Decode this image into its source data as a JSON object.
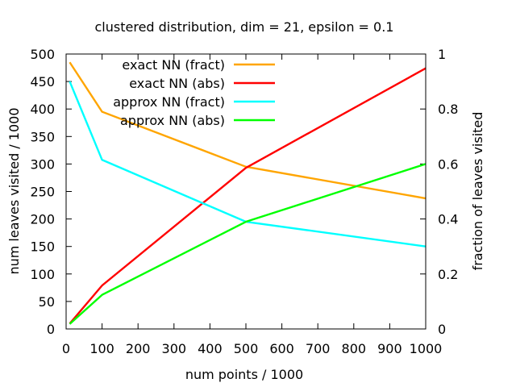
{
  "chart_data": {
    "type": "line",
    "title": "clustered distribution, dim = 21, epsilon = 0.1",
    "xlabel": "num points / 1000",
    "ylabel": "num leaves visited / 1000",
    "y2label": "fraction of leaves visited",
    "xlim": [
      0,
      1000
    ],
    "ylim": [
      0,
      500
    ],
    "y2lim": [
      0,
      1
    ],
    "xticks": [
      0,
      100,
      200,
      300,
      400,
      500,
      600,
      700,
      800,
      900,
      1000
    ],
    "yticks": [
      0,
      50,
      100,
      150,
      200,
      250,
      300,
      350,
      400,
      450,
      500
    ],
    "y2ticks": [
      0,
      0.2,
      0.4,
      0.6,
      0.8,
      1
    ],
    "grid": false,
    "legend_position": "top-left",
    "series": [
      {
        "name": "exact NN (fract)",
        "axis": "y2",
        "color": "#FFA500",
        "x": [
          10,
          100,
          500,
          1000
        ],
        "y": [
          0.97,
          0.79,
          0.59,
          0.475
        ]
      },
      {
        "name": "exact NN (abs)",
        "axis": "y",
        "color": "#FF0000",
        "x": [
          10,
          100,
          500,
          1000
        ],
        "y": [
          9.7,
          79,
          293,
          474
        ]
      },
      {
        "name": "approx NN (fract)",
        "axis": "y2",
        "color": "#00FFFF",
        "x": [
          10,
          100,
          500,
          1000
        ],
        "y": [
          0.9,
          0.615,
          0.39,
          0.3
        ]
      },
      {
        "name": "approx NN (abs)",
        "axis": "y",
        "color": "#00FF00",
        "x": [
          10,
          100,
          500,
          1000
        ],
        "y": [
          9,
          62,
          195,
          300
        ]
      }
    ]
  }
}
